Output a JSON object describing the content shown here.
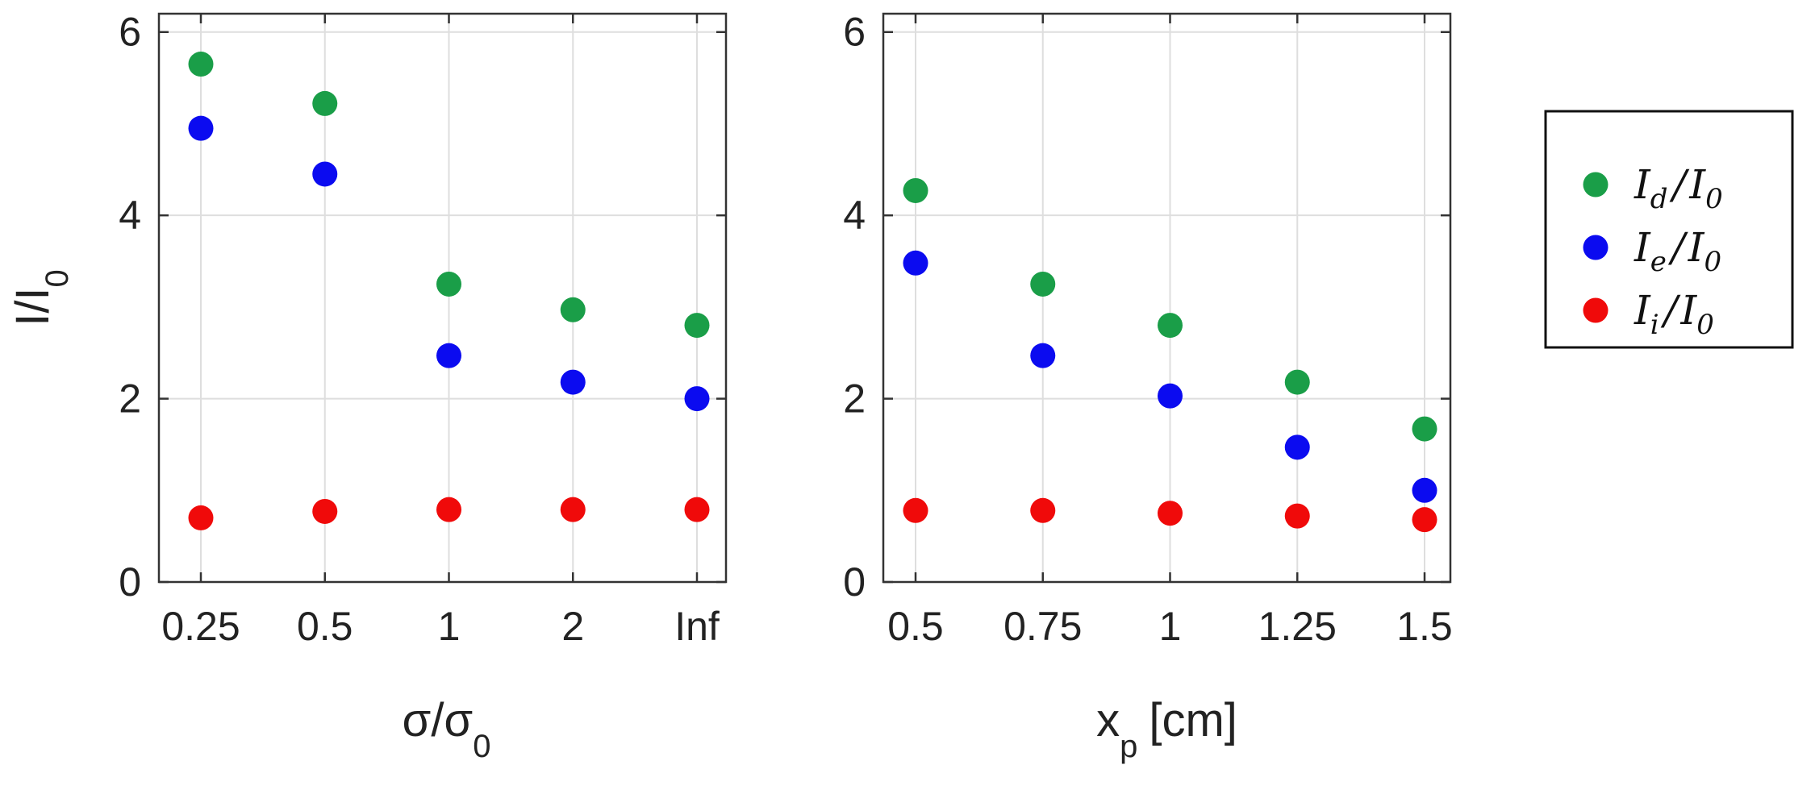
{
  "chart_data": [
    {
      "type": "scatter",
      "x_categories": [
        "0.25",
        "0.5",
        "1",
        "2",
        "Inf"
      ],
      "xlabel_main": "σ/σ",
      "xlabel_sub": "0",
      "ylabel_main": "I/I",
      "ylabel_sub": "0",
      "ylim": [
        0,
        6.2
      ],
      "yticks": [
        "0",
        "2",
        "4",
        "6"
      ],
      "grid": true,
      "series": [
        {
          "name": "Id/I0",
          "color": "#1a9e48",
          "values": [
            5.65,
            5.22,
            3.25,
            2.97,
            2.8
          ]
        },
        {
          "name": "Ie/I0",
          "color": "#0b0bf0",
          "values": [
            4.95,
            4.45,
            2.47,
            2.18,
            2.0
          ]
        },
        {
          "name": "Ii/I0",
          "color": "#f00a0a",
          "values": [
            0.7,
            0.77,
            0.79,
            0.79,
            0.79
          ]
        }
      ]
    },
    {
      "type": "scatter",
      "x_categories": [
        "0.5",
        "0.75",
        "1",
        "1.25",
        "1.5"
      ],
      "xlabel_main": "x",
      "xlabel_sub": "p",
      "xlabel_unit": "[cm]",
      "ylim": [
        0,
        6.2
      ],
      "yticks": [
        "0",
        "2",
        "4",
        "6"
      ],
      "grid": true,
      "series": [
        {
          "name": "Id/I0",
          "color": "#1a9e48",
          "values": [
            4.27,
            3.25,
            2.8,
            2.18,
            1.67
          ]
        },
        {
          "name": "Ie/I0",
          "color": "#0b0bf0",
          "values": [
            3.48,
            2.47,
            2.03,
            1.47,
            1.0
          ]
        },
        {
          "name": "Ii/I0",
          "color": "#f00a0a",
          "values": [
            0.78,
            0.78,
            0.75,
            0.72,
            0.68
          ]
        }
      ]
    }
  ],
  "legend": {
    "placement": "right",
    "entries": [
      {
        "main": "I",
        "sub": "d",
        "slash": "/",
        "main2": "I",
        "sub2": "0",
        "color": "#1a9e48"
      },
      {
        "main": "I",
        "sub": "e",
        "slash": "/",
        "main2": "I",
        "sub2": "0",
        "color": "#0b0bf0"
      },
      {
        "main": "I",
        "sub": "i",
        "slash": "/",
        "main2": "I",
        "sub2": "0",
        "color": "#f00a0a"
      }
    ]
  }
}
